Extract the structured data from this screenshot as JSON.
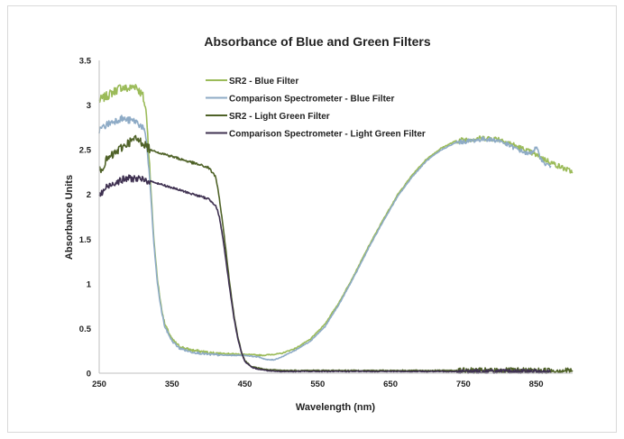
{
  "chart_data": {
    "type": "line",
    "title": "Absorbance of Blue and Green Filters",
    "xlabel": "Wavelength (nm)",
    "ylabel": "Absorbance Units",
    "xlim": [
      250,
      900
    ],
    "ylim": [
      0,
      3.5
    ],
    "x_ticks": [
      250,
      350,
      450,
      550,
      650,
      750,
      850
    ],
    "y_ticks": [
      0,
      0.5,
      1,
      1.5,
      2,
      2.5,
      3,
      3.5
    ],
    "y_tick_labels": [
      "0",
      "0.5",
      "1",
      "1.5",
      "2",
      "2.5",
      "3",
      "3.5"
    ],
    "grid": false,
    "legend_position": "top-center",
    "series": [
      {
        "name": "SR2 - Blue Filter",
        "color": "#9bbb59",
        "points": [
          [
            250,
            3.05
          ],
          [
            260,
            3.1
          ],
          [
            270,
            3.15
          ],
          [
            280,
            3.2
          ],
          [
            290,
            3.18
          ],
          [
            300,
            3.22
          ],
          [
            310,
            3.1
          ],
          [
            315,
            2.9
          ],
          [
            320,
            2.2
          ],
          [
            325,
            1.5
          ],
          [
            330,
            1.05
          ],
          [
            335,
            0.75
          ],
          [
            340,
            0.55
          ],
          [
            350,
            0.38
          ],
          [
            360,
            0.3
          ],
          [
            375,
            0.26
          ],
          [
            400,
            0.23
          ],
          [
            425,
            0.22
          ],
          [
            450,
            0.21
          ],
          [
            475,
            0.2
          ],
          [
            500,
            0.22
          ],
          [
            520,
            0.28
          ],
          [
            540,
            0.38
          ],
          [
            560,
            0.55
          ],
          [
            580,
            0.8
          ],
          [
            600,
            1.1
          ],
          [
            620,
            1.42
          ],
          [
            640,
            1.72
          ],
          [
            660,
            2.0
          ],
          [
            680,
            2.22
          ],
          [
            700,
            2.4
          ],
          [
            720,
            2.52
          ],
          [
            740,
            2.6
          ],
          [
            760,
            2.62
          ],
          [
            780,
            2.63
          ],
          [
            800,
            2.62
          ],
          [
            820,
            2.55
          ],
          [
            840,
            2.48
          ],
          [
            860,
            2.4
          ],
          [
            880,
            2.32
          ],
          [
            900,
            2.25
          ]
        ]
      },
      {
        "name": "Comparison Spectrometer - Blue Filter",
        "color": "#8eabc6",
        "points": [
          [
            250,
            2.72
          ],
          [
            260,
            2.78
          ],
          [
            270,
            2.82
          ],
          [
            280,
            2.85
          ],
          [
            290,
            2.83
          ],
          [
            300,
            2.82
          ],
          [
            310,
            2.75
          ],
          [
            315,
            2.6
          ],
          [
            320,
            2.1
          ],
          [
            325,
            1.45
          ],
          [
            330,
            1.0
          ],
          [
            335,
            0.72
          ],
          [
            340,
            0.52
          ],
          [
            350,
            0.36
          ],
          [
            360,
            0.28
          ],
          [
            375,
            0.24
          ],
          [
            400,
            0.21
          ],
          [
            425,
            0.2
          ],
          [
            450,
            0.2
          ],
          [
            470,
            0.18
          ],
          [
            480,
            0.15
          ],
          [
            490,
            0.15
          ],
          [
            500,
            0.18
          ],
          [
            520,
            0.26
          ],
          [
            540,
            0.36
          ],
          [
            560,
            0.52
          ],
          [
            580,
            0.78
          ],
          [
            600,
            1.08
          ],
          [
            620,
            1.4
          ],
          [
            640,
            1.7
          ],
          [
            660,
            1.98
          ],
          [
            680,
            2.2
          ],
          [
            700,
            2.38
          ],
          [
            720,
            2.5
          ],
          [
            740,
            2.58
          ],
          [
            760,
            2.6
          ],
          [
            780,
            2.62
          ],
          [
            800,
            2.6
          ],
          [
            820,
            2.52
          ],
          [
            840,
            2.45
          ],
          [
            850,
            2.52
          ],
          [
            860,
            2.35
          ],
          [
            870,
            2.32
          ]
        ]
      },
      {
        "name": "SR2 - Light Green Filter",
        "color": "#4f6228",
        "points": [
          [
            250,
            2.25
          ],
          [
            260,
            2.38
          ],
          [
            270,
            2.45
          ],
          [
            280,
            2.52
          ],
          [
            290,
            2.58
          ],
          [
            300,
            2.62
          ],
          [
            310,
            2.58
          ],
          [
            320,
            2.5
          ],
          [
            340,
            2.45
          ],
          [
            360,
            2.4
          ],
          [
            380,
            2.35
          ],
          [
            400,
            2.3
          ],
          [
            410,
            2.2
          ],
          [
            415,
            1.95
          ],
          [
            420,
            1.65
          ],
          [
            425,
            1.3
          ],
          [
            430,
            0.95
          ],
          [
            435,
            0.65
          ],
          [
            440,
            0.42
          ],
          [
            445,
            0.25
          ],
          [
            450,
            0.14
          ],
          [
            460,
            0.07
          ],
          [
            480,
            0.04
          ],
          [
            500,
            0.03
          ],
          [
            550,
            0.03
          ],
          [
            600,
            0.03
          ],
          [
            650,
            0.03
          ],
          [
            700,
            0.03
          ],
          [
            750,
            0.03
          ],
          [
            800,
            0.03
          ],
          [
            850,
            0.03
          ],
          [
            900,
            0.03
          ]
        ]
      },
      {
        "name": "Comparison Spectrometer - Light Green Filter",
        "color": "#3f3151",
        "points": [
          [
            250,
            1.98
          ],
          [
            260,
            2.08
          ],
          [
            270,
            2.13
          ],
          [
            280,
            2.16
          ],
          [
            290,
            2.18
          ],
          [
            300,
            2.18
          ],
          [
            310,
            2.16
          ],
          [
            320,
            2.15
          ],
          [
            340,
            2.1
          ],
          [
            360,
            2.05
          ],
          [
            380,
            2.0
          ],
          [
            400,
            1.95
          ],
          [
            410,
            1.88
          ],
          [
            415,
            1.75
          ],
          [
            420,
            1.5
          ],
          [
            425,
            1.2
          ],
          [
            430,
            0.9
          ],
          [
            435,
            0.62
          ],
          [
            440,
            0.4
          ],
          [
            445,
            0.24
          ],
          [
            450,
            0.13
          ],
          [
            460,
            0.06
          ],
          [
            480,
            0.03
          ],
          [
            500,
            0.02
          ],
          [
            550,
            0.02
          ],
          [
            600,
            0.02
          ],
          [
            650,
            0.02
          ],
          [
            700,
            0.02
          ],
          [
            750,
            0.02
          ],
          [
            800,
            0.02
          ],
          [
            850,
            0.02
          ],
          [
            870,
            0.02
          ]
        ]
      }
    ]
  }
}
